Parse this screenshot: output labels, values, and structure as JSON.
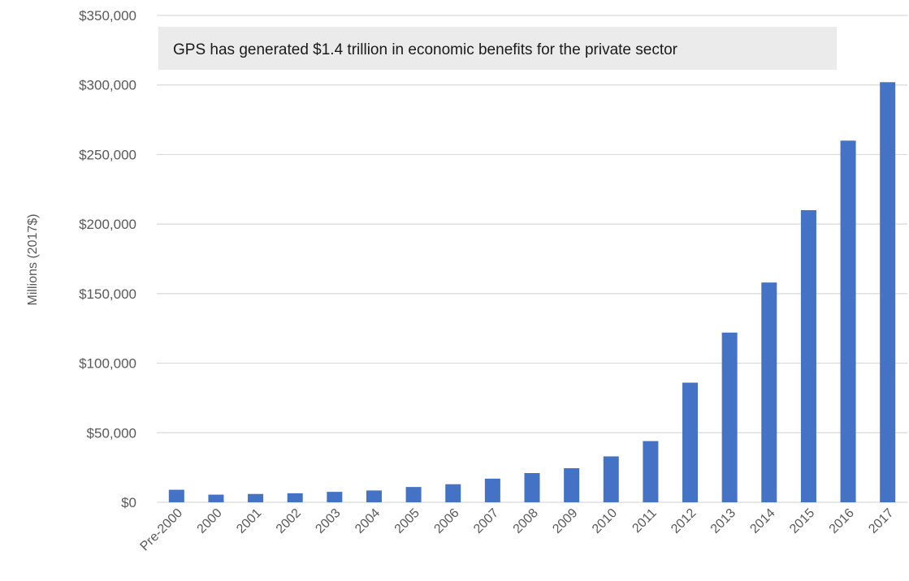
{
  "chart_data": {
    "type": "bar",
    "title": "",
    "annotation": "GPS has generated $1.4 trillion in economic benefits for the private sector",
    "xlabel": "",
    "ylabel": "Millions (2017$)",
    "ylim": [
      0,
      350000
    ],
    "yticks": [
      0,
      50000,
      100000,
      150000,
      200000,
      250000,
      300000,
      350000
    ],
    "ytick_labels": [
      "$0",
      "$50,000",
      "$100,000",
      "$150,000",
      "$200,000",
      "$250,000",
      "$300,000",
      "$350,000"
    ],
    "categories": [
      "Pre-2000",
      "2000",
      "2001",
      "2002",
      "2003",
      "2004",
      "2005",
      "2006",
      "2007",
      "2008",
      "2009",
      "2010",
      "2011",
      "2012",
      "2013",
      "2014",
      "2015",
      "2016",
      "2017"
    ],
    "values": [
      9000,
      5500,
      6000,
      6500,
      7500,
      8500,
      11000,
      13000,
      17000,
      21000,
      24500,
      33000,
      44000,
      86000,
      122000,
      158000,
      210000,
      260000,
      302000
    ],
    "grid": true,
    "legend": "none",
    "bar_color": "#4472C4",
    "annotation_bg": "#EBEBEB",
    "grid_color": "#D9D9D9",
    "text_color": "#595959"
  }
}
